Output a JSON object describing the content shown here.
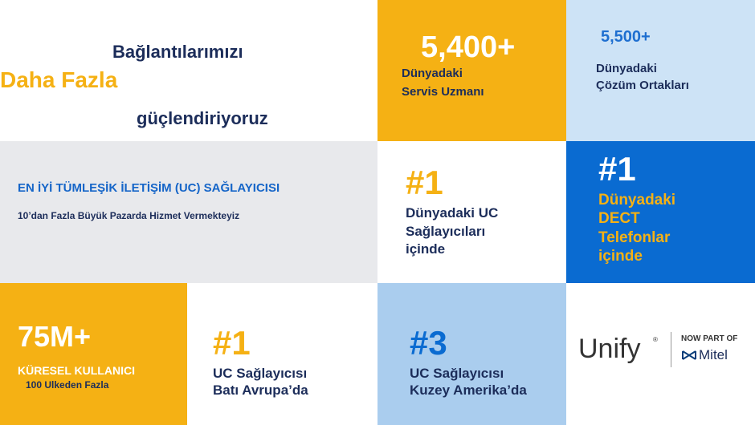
{
  "header": {
    "line1": "Bağlantılarımızı",
    "line2": "Daha Fazla",
    "line3": "güçlendiriyoruz"
  },
  "tiles": [
    {
      "stat": "5,400+",
      "lines": [
        "Dünyadaki",
        "Servis Uzmanı"
      ]
    },
    {
      "stat": "5,500+",
      "lines": [
        "Dünyadaki",
        "Çözüm Ortakları"
      ]
    },
    {
      "title": "EN İYİ TÜMLEŞİK İLETİŞİM (UC) SAĞLAYICISI",
      "subtitle": "10’dan Fazla Büyük Pazarda Hizmet Vermekteyiz"
    },
    {
      "stat": "#1",
      "lines": [
        "Dünyadaki UC",
        "Sağlayıcıları",
        "içinde"
      ]
    },
    {
      "stat": "#1",
      "lines": [
        "Dünyadaki",
        "DECT",
        "Telefonlar",
        "içinde"
      ]
    },
    {
      "stat": "75M+",
      "title": "KÜRESEL KULLANICI",
      "subtitle": "100 Ulkeden Fazla"
    },
    {
      "stat": "#1",
      "lines": [
        "UC Sağlayıcısı",
        "Batı Avrupa’da"
      ]
    },
    {
      "stat": "#3",
      "lines": [
        "UC Sağlayıcısı",
        "Kuzey Amerika’da"
      ]
    }
  ],
  "logo": {
    "brand": "Unify",
    "registered": "®",
    "tagline": "NOW PART OF",
    "partner": "Mitel"
  }
}
